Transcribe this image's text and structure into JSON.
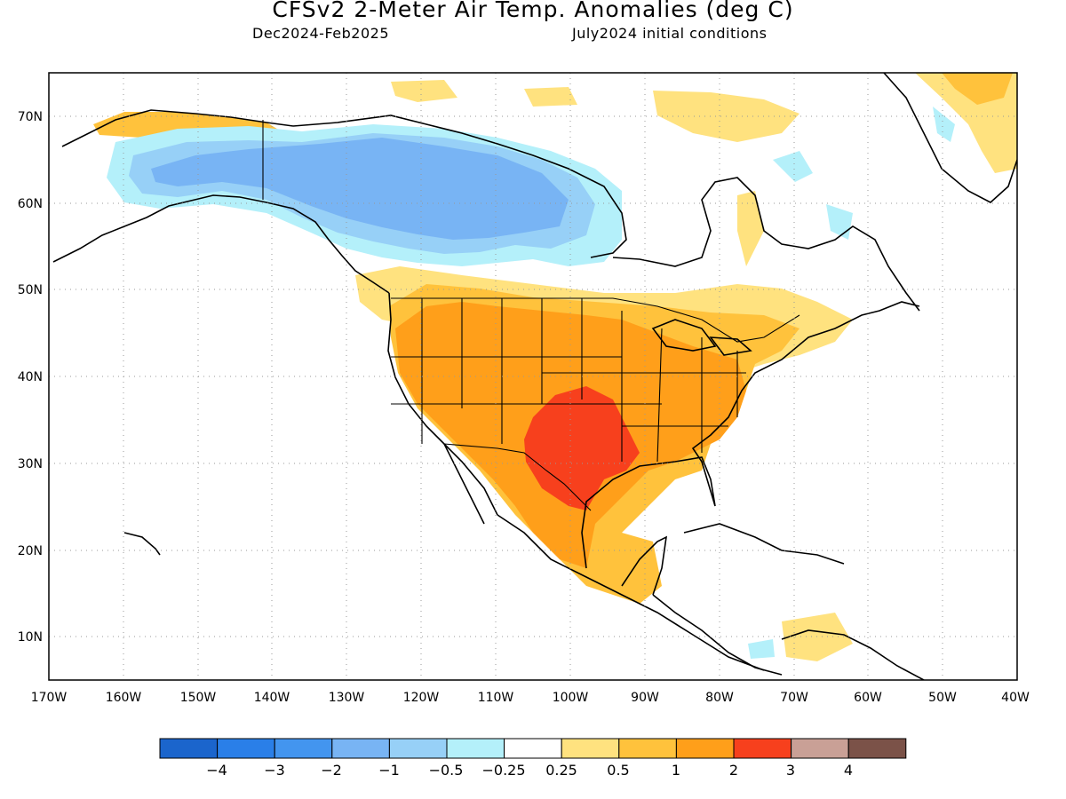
{
  "title": "CFSv2 2-Meter Air Temp. Anomalies (deg C)",
  "subtitle_left": "Dec2024-Feb2025",
  "subtitle_right": "July2024 initial conditions",
  "map": {
    "lon_range": [
      -170,
      -40
    ],
    "lat_range": [
      5,
      75
    ],
    "lat_labels": [
      "10N",
      "20N",
      "30N",
      "40N",
      "50N",
      "60N",
      "70N"
    ],
    "lat_values": [
      10,
      20,
      30,
      40,
      50,
      60,
      70
    ],
    "lon_labels": [
      "170W",
      "160W",
      "150W",
      "140W",
      "130W",
      "120W",
      "110W",
      "100W",
      "90W",
      "80W",
      "70W",
      "60W",
      "50W",
      "40W"
    ],
    "lon_values": [
      -170,
      -160,
      -150,
      -140,
      -130,
      -120,
      -110,
      -100,
      -90,
      -80,
      -70,
      -60,
      -50,
      -40
    ],
    "grid": "dotted"
  },
  "colorbar": {
    "labels": [
      "−4",
      "−3",
      "−2",
      "−1",
      "−0.5",
      "−0.25",
      "0.25",
      "0.5",
      "1",
      "2",
      "3",
      "4"
    ],
    "colors": [
      "#1b65cc",
      "#2a7fe8",
      "#4395ef",
      "#78b4f4",
      "#97d0f7",
      "#b4f0fa",
      "#ffffff",
      "#ffe27f",
      "#ffc23c",
      "#ff9f1a",
      "#f7401d",
      "#c9a096",
      "#7b5248"
    ]
  }
}
